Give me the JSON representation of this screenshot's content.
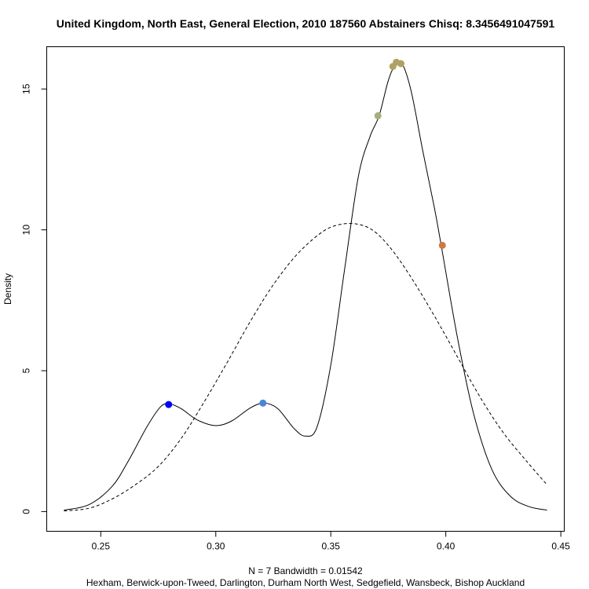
{
  "chart_data": {
    "type": "line",
    "title": "United Kingdom, North East, General Election, 2010 187560 Abstainers Chisq: 8.3456491047591",
    "ylabel": "Density",
    "xlabel": "N = 7   Bandwidth = 0.01542",
    "sublabel": "Hexham, Berwick-upon-Tweed, Darlington, Durham North West, Sedgefield, Wansbeck, Bishop Auckland",
    "xlim": [
      0.2265,
      0.4515
    ],
    "ylim": [
      -0.7,
      16.5
    ],
    "x_ticks": [
      0.25,
      0.3,
      0.35,
      0.4,
      0.45
    ],
    "x_tick_labels": [
      "0.25",
      "0.30",
      "0.35",
      "0.40",
      "0.45"
    ],
    "y_ticks": [
      0,
      5,
      10,
      15
    ],
    "y_tick_labels": [
      "0",
      "5",
      "10",
      "15"
    ],
    "grid": false,
    "legend": "none",
    "series": [
      {
        "style": "solid",
        "color": "#000000",
        "points": [
          [
            0.234,
            0.05
          ],
          [
            0.245,
            0.25
          ],
          [
            0.255,
            0.9
          ],
          [
            0.262,
            1.8
          ],
          [
            0.27,
            3.0
          ],
          [
            0.276,
            3.72
          ],
          [
            0.28,
            3.82
          ],
          [
            0.285,
            3.65
          ],
          [
            0.292,
            3.25
          ],
          [
            0.3,
            3.05
          ],
          [
            0.307,
            3.22
          ],
          [
            0.315,
            3.68
          ],
          [
            0.321,
            3.85
          ],
          [
            0.327,
            3.65
          ],
          [
            0.334,
            2.95
          ],
          [
            0.339,
            2.68
          ],
          [
            0.344,
            3.0
          ],
          [
            0.35,
            5.2
          ],
          [
            0.356,
            8.6
          ],
          [
            0.362,
            11.9
          ],
          [
            0.367,
            13.3
          ],
          [
            0.371,
            14.05
          ],
          [
            0.375,
            15.3
          ],
          [
            0.378,
            15.85
          ],
          [
            0.381,
            15.9
          ],
          [
            0.385,
            14.9
          ],
          [
            0.39,
            12.8
          ],
          [
            0.395,
            10.8
          ],
          [
            0.398,
            9.45
          ],
          [
            0.405,
            6.2
          ],
          [
            0.412,
            3.5
          ],
          [
            0.42,
            1.5
          ],
          [
            0.428,
            0.55
          ],
          [
            0.436,
            0.18
          ],
          [
            0.444,
            0.05
          ]
        ]
      },
      {
        "style": "dashed",
        "color": "#000000",
        "points": [
          [
            0.234,
            0.02
          ],
          [
            0.245,
            0.12
          ],
          [
            0.255,
            0.45
          ],
          [
            0.265,
            0.95
          ],
          [
            0.275,
            1.6
          ],
          [
            0.285,
            2.6
          ],
          [
            0.295,
            3.9
          ],
          [
            0.305,
            5.3
          ],
          [
            0.315,
            6.75
          ],
          [
            0.325,
            8.05
          ],
          [
            0.335,
            9.1
          ],
          [
            0.345,
            9.85
          ],
          [
            0.352,
            10.15
          ],
          [
            0.36,
            10.22
          ],
          [
            0.368,
            10.0
          ],
          [
            0.376,
            9.35
          ],
          [
            0.385,
            8.3
          ],
          [
            0.395,
            6.95
          ],
          [
            0.405,
            5.5
          ],
          [
            0.415,
            4.05
          ],
          [
            0.425,
            2.8
          ],
          [
            0.435,
            1.8
          ],
          [
            0.444,
            0.95
          ]
        ]
      }
    ],
    "points": [
      {
        "x": 0.2795,
        "y": 3.8,
        "color": "#0000ff"
      },
      {
        "x": 0.3205,
        "y": 3.85,
        "color": "#4a86d8"
      },
      {
        "x": 0.3705,
        "y": 14.05,
        "color": "#a6ae7c"
      },
      {
        "x": 0.377,
        "y": 15.8,
        "color": "#aea262"
      },
      {
        "x": 0.3785,
        "y": 15.95,
        "color": "#aea262"
      },
      {
        "x": 0.3805,
        "y": 15.9,
        "color": "#aea262"
      },
      {
        "x": 0.3985,
        "y": 9.45,
        "color": "#cc7a45"
      }
    ]
  }
}
